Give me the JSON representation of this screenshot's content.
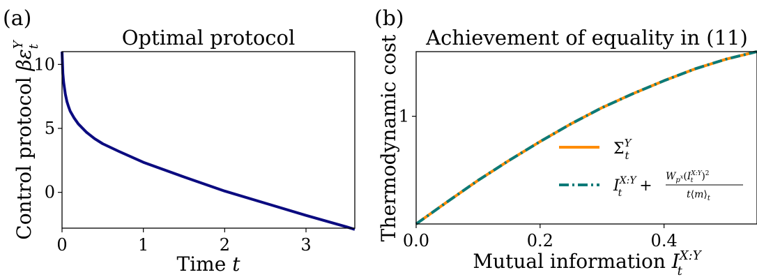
{
  "panels": {
    "a": {
      "label": "(a)"
    },
    "b": {
      "label": "(b)"
    }
  },
  "chart_data": [
    {
      "type": "line",
      "title": "Optimal protocol",
      "xlabel": "Time t",
      "ylabel": "Control protocol βε_t^Y",
      "xlim": [
        0,
        3.6
      ],
      "ylim": [
        -2.8,
        11
      ],
      "xticks": [
        0,
        1,
        2,
        3
      ],
      "yticks": [
        0,
        5,
        10
      ],
      "grid": false,
      "series": [
        {
          "color": "#0b0b80",
          "x": [
            0.0,
            0.01,
            0.02,
            0.04,
            0.06,
            0.08,
            0.1,
            0.15,
            0.2,
            0.3,
            0.4,
            0.5,
            0.7,
            1.0,
            1.5,
            2.0,
            2.5,
            3.0,
            3.5,
            3.6
          ],
          "y": [
            11.0,
            9.3,
            8.6,
            7.7,
            7.1,
            6.7,
            6.35,
            5.8,
            5.35,
            4.7,
            4.2,
            3.8,
            3.2,
            2.35,
            1.2,
            0.1,
            -0.85,
            -1.8,
            -2.7,
            -2.9
          ]
        }
      ]
    },
    {
      "type": "line",
      "title": "Achievement of equality in (11)",
      "xlabel": "Mutual information I_t^{X:Y}",
      "ylabel": "Thermodynamic cost",
      "xlim": [
        0,
        0.55
      ],
      "ylim": [
        0,
        1.6
      ],
      "xticks": [
        0.0,
        0.2,
        0.4
      ],
      "yticks": [
        1
      ],
      "grid": false,
      "legend_position": "lower-right",
      "series": [
        {
          "name": "Σ_t^Y",
          "color": "#ff8c00",
          "style": "solid",
          "x": [
            0,
            0.05,
            0.1,
            0.15,
            0.2,
            0.25,
            0.3,
            0.35,
            0.4,
            0.45,
            0.5,
            0.55
          ],
          "y": [
            0,
            0.205,
            0.405,
            0.59,
            0.765,
            0.93,
            1.08,
            1.21,
            1.33,
            1.44,
            1.53,
            1.6
          ]
        },
        {
          "name": "I_t^{X:Y} + W_{p^x}(I_t^{X:Y})^2 / t⟨m⟩_t",
          "color": "#0b7a78",
          "style": "dashdot",
          "x": [
            0,
            0.05,
            0.1,
            0.15,
            0.2,
            0.25,
            0.3,
            0.35,
            0.4,
            0.45,
            0.5,
            0.55
          ],
          "y": [
            0,
            0.205,
            0.405,
            0.59,
            0.765,
            0.93,
            1.08,
            1.21,
            1.33,
            1.44,
            1.53,
            1.6
          ]
        }
      ]
    }
  ]
}
